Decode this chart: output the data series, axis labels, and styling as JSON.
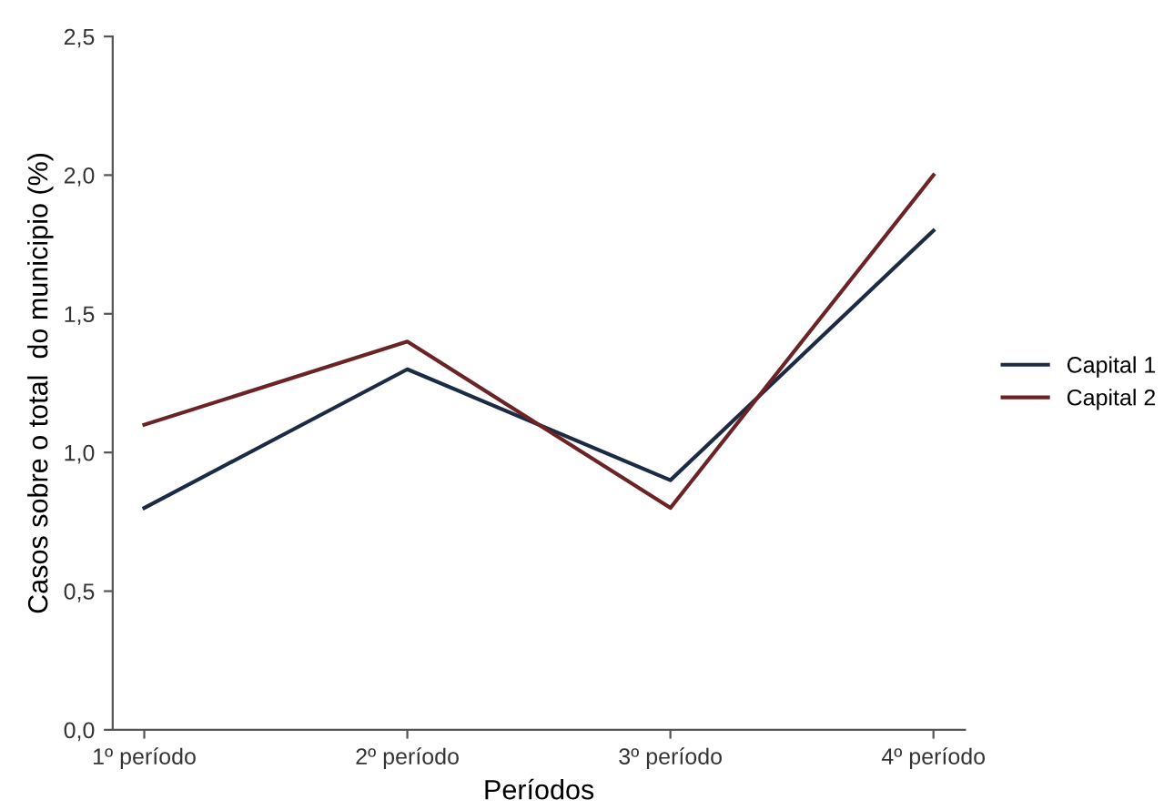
{
  "chart_data": {
    "type": "line",
    "xlabel": "Períodos",
    "ylabel": "Casos sobre o total  do municipio (%)",
    "categories": [
      "1º período",
      "2º período",
      "3º período",
      "4º período"
    ],
    "series": [
      {
        "name": "Capital 1",
        "color": "#1b2a45",
        "values": [
          0.8,
          1.3,
          0.9,
          1.8
        ]
      },
      {
        "name": "Capital 2",
        "color": "#6b2326",
        "values": [
          1.1,
          1.4,
          0.8,
          2.0
        ]
      }
    ],
    "ylim": [
      0,
      2.5
    ],
    "yticks": [
      {
        "value": 0,
        "label": "0,0"
      },
      {
        "value": 0.5,
        "label": "0,5"
      },
      {
        "value": 1,
        "label": "1,0"
      },
      {
        "value": 1.5,
        "label": "1,5"
      },
      {
        "value": 2,
        "label": "2,0"
      },
      {
        "value": 2.5,
        "label": "2,5"
      }
    ],
    "grid": false,
    "legend": "right",
    "marker": "none",
    "line_style": "solid"
  }
}
